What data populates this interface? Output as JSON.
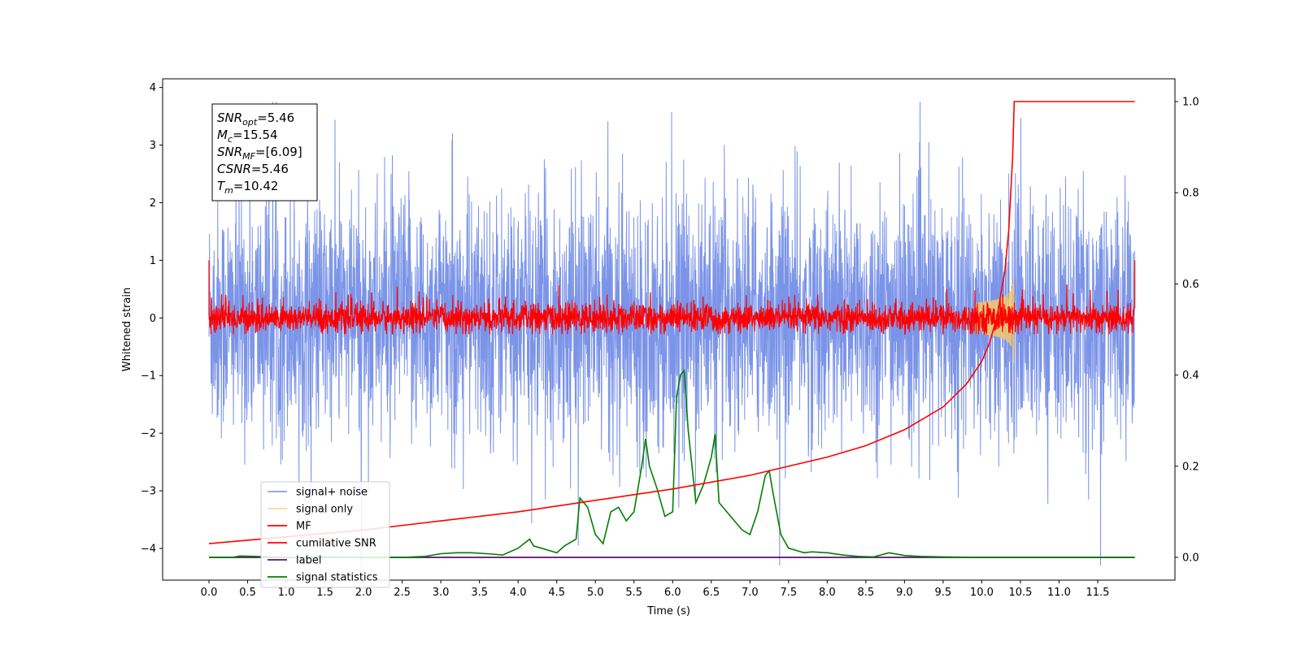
{
  "chart_data": {
    "type": "line",
    "title": "",
    "xlabel": "Time (s)",
    "ylabel": "Whitened strain",
    "xlim": [
      -0.6,
      12.5
    ],
    "ylim": [
      -4.55,
      4.15
    ],
    "y2lim": [
      -0.05,
      1.05
    ],
    "xticks": [
      "0.0",
      "0.5",
      "1.0",
      "1.5",
      "2.0",
      "2.5",
      "3.0",
      "3.5",
      "4.0",
      "4.5",
      "5.0",
      "5.5",
      "6.0",
      "6.5",
      "7.0",
      "7.5",
      "8.0",
      "8.5",
      "9.0",
      "9.5",
      "10.0",
      "10.5",
      "11.0",
      "11.5"
    ],
    "yticks": [
      "4",
      "3",
      "2",
      "1",
      "0",
      "−1",
      "−2",
      "−3",
      "−4"
    ],
    "y2ticks": [
      "1.0",
      "0.8",
      "0.6",
      "0.4",
      "0.2",
      "0.0"
    ],
    "legend_position": "lower-left",
    "grid": false,
    "annotation": {
      "lines": [
        {
          "name": "SNR",
          "sub": "opt",
          "value": "=5.46"
        },
        {
          "name": "M",
          "sub": "c",
          "value": "=15.54"
        },
        {
          "name": "SNR",
          "sub": "MF",
          "value": "=[6.09]"
        },
        {
          "name": "CSNR",
          "sub": "",
          "value": "=5.46"
        },
        {
          "name": "T",
          "sub": "m",
          "value": "=10.42"
        }
      ]
    },
    "series": [
      {
        "name": "signal+ noise",
        "color": "#7b94e8",
        "axis": "left",
        "style": "noise",
        "amplitude": 2.6,
        "t_start": 0.0,
        "t_end": 11.98
      },
      {
        "name": "signal only",
        "color": "#f5c86a",
        "axis": "left",
        "style": "chirp",
        "amplitude": 0.9,
        "t_merger": 10.42
      },
      {
        "name": "MF",
        "color": "#ff0000",
        "axis": "left",
        "style": "noise",
        "amplitude": 0.35
      },
      {
        "name": "cumilative SNR",
        "color": "#ff0000",
        "axis": "right",
        "x": [
          0.0,
          1.0,
          2.0,
          3.0,
          4.0,
          5.0,
          6.0,
          7.0,
          8.0,
          8.5,
          9.0,
          9.5,
          9.8,
          10.0,
          10.1,
          10.2,
          10.3,
          10.35,
          10.4,
          10.42,
          11.98
        ],
        "y": [
          0.03,
          0.045,
          0.06,
          0.08,
          0.1,
          0.125,
          0.15,
          0.18,
          0.22,
          0.245,
          0.28,
          0.33,
          0.38,
          0.43,
          0.47,
          0.53,
          0.63,
          0.72,
          0.88,
          1.0,
          1.0
        ]
      },
      {
        "name": "label",
        "color": "#5a1070",
        "axis": "right",
        "x": [
          0.0,
          11.98
        ],
        "y": [
          0.0,
          0.0
        ]
      },
      {
        "name": "signal statistics",
        "color": "#008000",
        "axis": "right",
        "x": [
          0.0,
          0.3,
          0.4,
          0.6,
          1.0,
          1.5,
          2.0,
          2.5,
          2.8,
          3.0,
          3.2,
          3.4,
          3.6,
          3.8,
          4.0,
          4.15,
          4.2,
          4.3,
          4.4,
          4.5,
          4.6,
          4.75,
          4.8,
          4.9,
          5.0,
          5.1,
          5.2,
          5.3,
          5.4,
          5.5,
          5.6,
          5.65,
          5.7,
          5.8,
          5.9,
          6.0,
          6.05,
          6.1,
          6.15,
          6.2,
          6.3,
          6.4,
          6.5,
          6.55,
          6.6,
          6.7,
          6.8,
          6.9,
          7.0,
          7.1,
          7.2,
          7.25,
          7.3,
          7.4,
          7.5,
          7.6,
          7.7,
          7.8,
          8.0,
          8.2,
          8.4,
          8.6,
          8.8,
          9.0,
          9.2,
          9.5,
          10.0,
          11.0,
          11.98
        ],
        "y": [
          0.0,
          0.0,
          0.003,
          0.002,
          0.0,
          0.001,
          0.0,
          0.0,
          0.002,
          0.008,
          0.01,
          0.01,
          0.008,
          0.005,
          0.02,
          0.04,
          0.025,
          0.02,
          0.015,
          0.01,
          0.025,
          0.04,
          0.13,
          0.11,
          0.05,
          0.03,
          0.1,
          0.11,
          0.08,
          0.1,
          0.2,
          0.26,
          0.2,
          0.15,
          0.09,
          0.1,
          0.35,
          0.4,
          0.41,
          0.28,
          0.12,
          0.16,
          0.22,
          0.27,
          0.12,
          0.1,
          0.08,
          0.06,
          0.05,
          0.1,
          0.18,
          0.19,
          0.14,
          0.05,
          0.02,
          0.015,
          0.01,
          0.012,
          0.01,
          0.005,
          0.002,
          0.001,
          0.01,
          0.004,
          0.002,
          0.001,
          0.0,
          0.0,
          0.0
        ]
      }
    ]
  }
}
